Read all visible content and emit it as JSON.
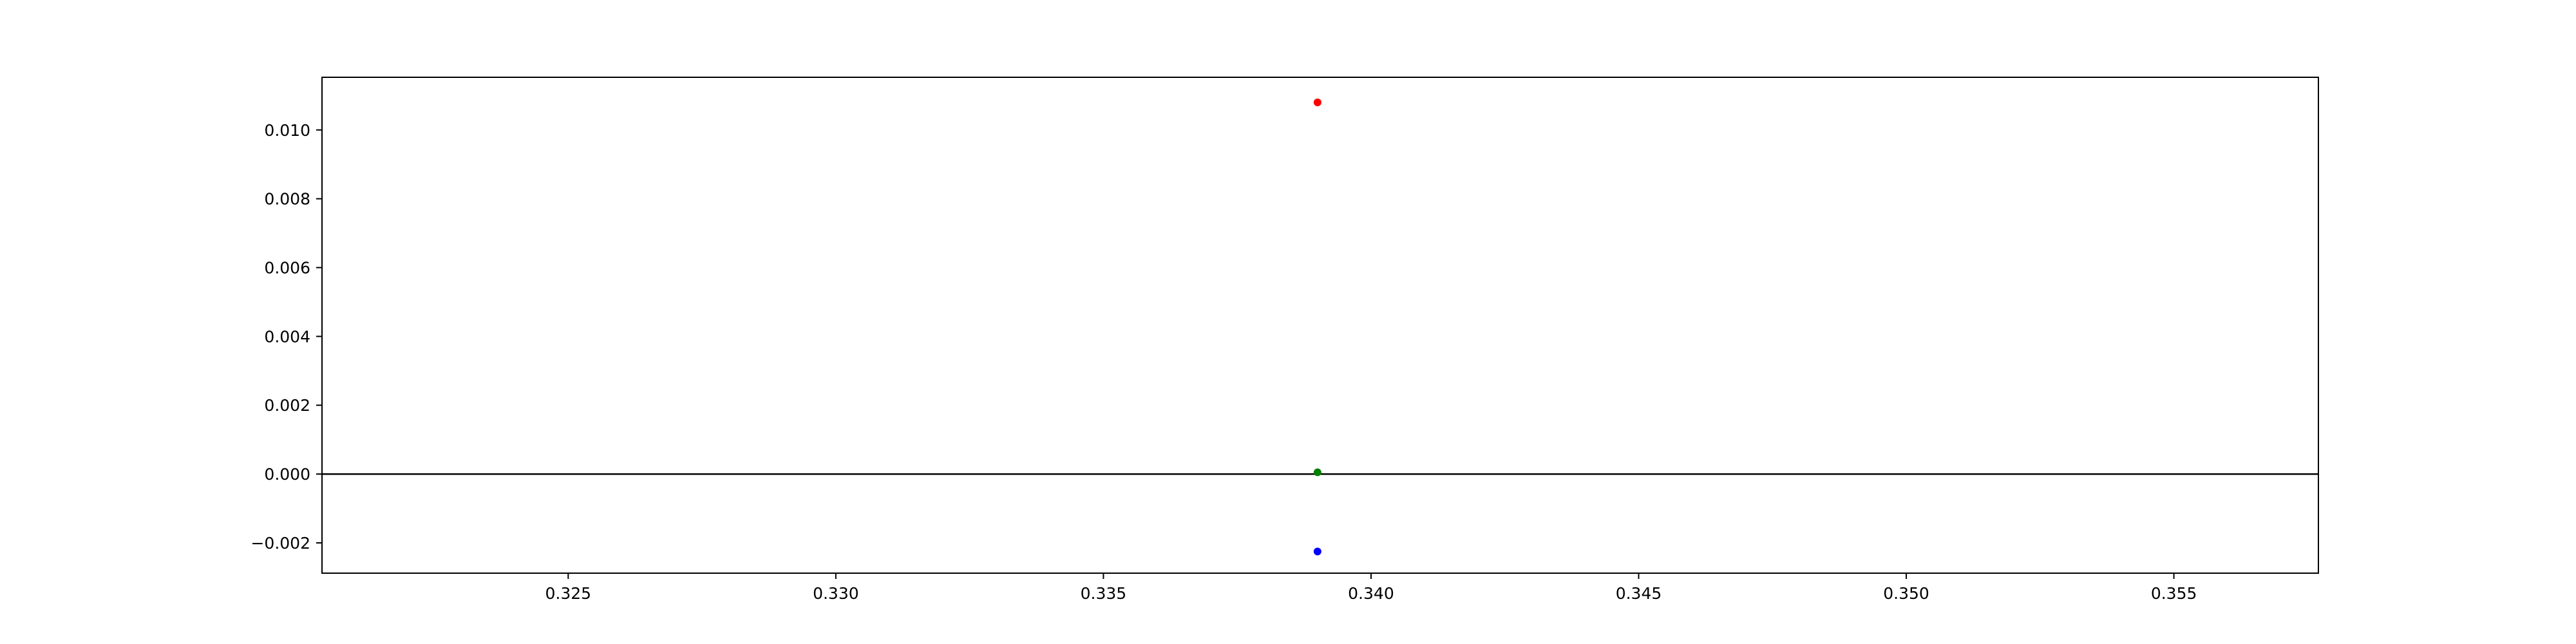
{
  "chart_data": {
    "type": "scatter",
    "title": "",
    "xlabel": "",
    "ylabel": "",
    "xlim": [
      0.3204,
      0.3577
    ],
    "ylim": [
      -0.00288,
      0.01153
    ],
    "grid": false,
    "x_ticks": [
      0.325,
      0.33,
      0.335,
      0.34,
      0.345,
      0.35,
      0.355
    ],
    "x_tick_labels": [
      "0.325",
      "0.330",
      "0.335",
      "0.340",
      "0.345",
      "0.350",
      "0.355"
    ],
    "y_ticks": [
      -0.002,
      0.0,
      0.002,
      0.004,
      0.006,
      0.008,
      0.01
    ],
    "y_tick_labels": [
      "−0.002",
      "0.000",
      "0.002",
      "0.004",
      "0.006",
      "0.008",
      "0.010"
    ],
    "hline": {
      "y": 0.0,
      "color": "#000000"
    },
    "points": [
      {
        "x": 0.339,
        "y": 0.0108,
        "color": "#ff0000"
      },
      {
        "x": 0.339,
        "y": 5e-05,
        "color": "#008000"
      },
      {
        "x": 0.339,
        "y": -0.00225,
        "color": "#0000ff"
      }
    ]
  }
}
